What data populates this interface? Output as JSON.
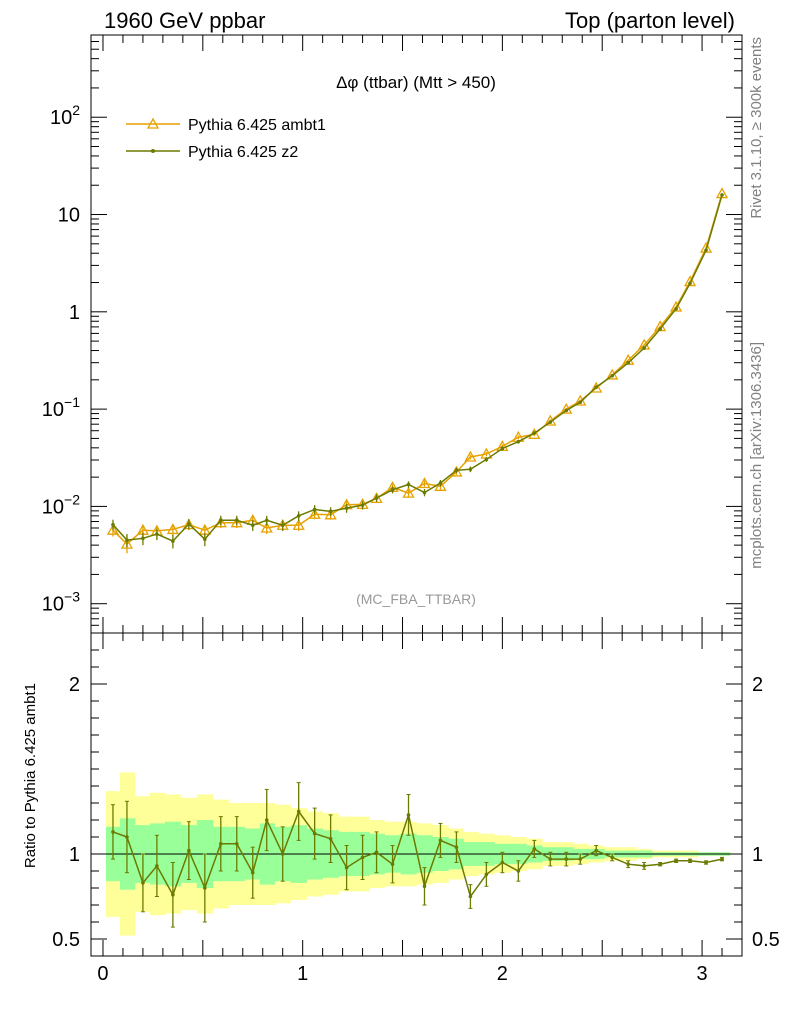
{
  "header": {
    "left": "1960 GeV ppbar",
    "right": "Top (parton level)"
  },
  "side_labels": {
    "rivet": "Rivet 3.1.10, ≥ 300k events",
    "mcplots": "mcplots.cern.ch [arXiv:1306.3436]"
  },
  "chart_data": {
    "type": "line",
    "title": "Δφ (ttbar) (Mtt > 450)",
    "analysis_label": "(MC_FBA_TTBAR)",
    "main_panel": {
      "yscale": "log",
      "ylim": [
        0.0005,
        700
      ],
      "yticks": [
        {
          "value": 0.001,
          "base": "10",
          "exp": "−3"
        },
        {
          "value": 0.01,
          "base": "10",
          "exp": "−2"
        },
        {
          "value": 0.1,
          "base": "10",
          "exp": "−1"
        },
        {
          "value": 1,
          "base": "1",
          "exp": ""
        },
        {
          "value": 10,
          "base": "10",
          "exp": ""
        },
        {
          "value": 100,
          "base": "10",
          "exp": "2"
        }
      ],
      "legend_position": "top-left"
    },
    "ratio_panel": {
      "ylabel": "Ratio to Pythia 6.425 ambt1",
      "ylim": [
        0.4,
        2.3
      ],
      "yticks": [
        {
          "value": 0.5,
          "label": "0.5"
        },
        {
          "value": 1,
          "label": "1"
        },
        {
          "value": 2,
          "label": "2"
        }
      ]
    },
    "xlim": [
      -0.06,
      3.2
    ],
    "xticks": [
      {
        "value": 0,
        "label": "0"
      },
      {
        "value": 1,
        "label": "1"
      },
      {
        "value": 2,
        "label": "2"
      },
      {
        "value": 3,
        "label": "3"
      }
    ],
    "x": [
      0.05,
      0.12,
      0.2,
      0.27,
      0.35,
      0.43,
      0.51,
      0.59,
      0.67,
      0.75,
      0.82,
      0.9,
      0.98,
      1.06,
      1.14,
      1.22,
      1.3,
      1.37,
      1.45,
      1.53,
      1.61,
      1.69,
      1.77,
      1.84,
      1.92,
      2.0,
      2.08,
      2.16,
      2.24,
      2.32,
      2.39,
      2.47,
      2.55,
      2.63,
      2.71,
      2.79,
      2.87,
      2.94,
      3.02,
      3.1
    ],
    "series": [
      {
        "name": "Pythia 6.425 ambt1",
        "color": "#e6a100",
        "marker": "triangle",
        "values": [
          0.0057,
          0.0041,
          0.0057,
          0.0056,
          0.0058,
          0.0065,
          0.0057,
          0.0068,
          0.0068,
          0.0072,
          0.006,
          0.0064,
          0.0064,
          0.0083,
          0.0082,
          0.0104,
          0.0105,
          0.0121,
          0.0157,
          0.0137,
          0.0172,
          0.0161,
          0.0226,
          0.0322,
          0.0346,
          0.0414,
          0.0514,
          0.0551,
          0.0755,
          0.0999,
          0.1212,
          0.1649,
          0.2245,
          0.3185,
          0.4563,
          0.7047,
          1.1202,
          2.0454,
          4.5187,
          16.4138
        ],
        "errors": [
          0.0008,
          0.0008,
          0.0008,
          0.0008,
          0.0008,
          0.0008,
          0.0008,
          0.0008,
          0.0008,
          0.0008,
          0.0008,
          0.0008,
          0.0008,
          0.0009,
          0.0009,
          0.001,
          0.001,
          0.0011,
          0.0012,
          0.0012,
          0.0013,
          0.0013,
          0.0015,
          0.0018,
          0.0018,
          0.002,
          0.0023,
          0.0024,
          0.0027,
          0.0032,
          0.0035,
          0.004,
          0.0047,
          0.0056,
          0.0067,
          0.0084,
          0.0106,
          0.0143,
          0.0213,
          0.0405
        ]
      },
      {
        "name": "Pythia 6.425 z2",
        "color": "#6b7a00",
        "marker": "dot",
        "values": [
          0.0065,
          0.0045,
          0.0047,
          0.0052,
          0.0044,
          0.0066,
          0.0046,
          0.0072,
          0.0072,
          0.0064,
          0.0072,
          0.0064,
          0.008,
          0.0093,
          0.0089,
          0.0096,
          0.0103,
          0.0122,
          0.0148,
          0.0168,
          0.0139,
          0.0174,
          0.0235,
          0.0241,
          0.0304,
          0.0394,
          0.0463,
          0.0567,
          0.0734,
          0.0969,
          0.1176,
          0.1683,
          0.2201,
          0.2994,
          0.4244,
          0.6648,
          1.0754,
          1.9636,
          4.2929,
          15.9214
        ],
        "errors": [
          0.0008,
          0.0007,
          0.0007,
          0.0007,
          0.0007,
          0.0008,
          0.0007,
          0.0008,
          0.0008,
          0.0008,
          0.0008,
          0.0008,
          0.0009,
          0.001,
          0.0009,
          0.001,
          0.001,
          0.0011,
          0.0012,
          0.0013,
          0.0012,
          0.0013,
          0.0015,
          0.0016,
          0.0017,
          0.002,
          0.0021,
          0.0024,
          0.0027,
          0.0031,
          0.0034,
          0.0041,
          0.0047,
          0.0055,
          0.0065,
          0.0081,
          0.0104,
          0.014,
          0.0207,
          0.04
        ]
      }
    ],
    "ratio": {
      "values": [
        1.13,
        1.1,
        0.83,
        0.93,
        0.76,
        1.02,
        0.8,
        1.06,
        1.06,
        0.89,
        1.2,
        1.0,
        1.25,
        1.12,
        1.09,
        0.92,
        0.98,
        1.01,
        0.94,
        1.23,
        0.81,
        1.08,
        1.04,
        0.75,
        0.88,
        0.95,
        0.9,
        1.03,
        0.97,
        0.97,
        0.97,
        1.02,
        0.98,
        0.94,
        0.93,
        0.94,
        0.96,
        0.96,
        0.95,
        0.97
      ],
      "errors": [
        0.16,
        0.21,
        0.17,
        0.18,
        0.19,
        0.17,
        0.2,
        0.16,
        0.16,
        0.15,
        0.18,
        0.16,
        0.17,
        0.15,
        0.14,
        0.13,
        0.13,
        0.12,
        0.11,
        0.12,
        0.11,
        0.1,
        0.09,
        0.07,
        0.07,
        0.06,
        0.06,
        0.05,
        0.04,
        0.04,
        0.03,
        0.03,
        0.02,
        0.02,
        0.02,
        0.01,
        0.01,
        0.01,
        0.01,
        0.01
      ],
      "band_green": [
        0.16,
        0.21,
        0.17,
        0.18,
        0.19,
        0.17,
        0.2,
        0.16,
        0.16,
        0.15,
        0.18,
        0.16,
        0.17,
        0.15,
        0.14,
        0.13,
        0.13,
        0.12,
        0.11,
        0.12,
        0.11,
        0.1,
        0.09,
        0.07,
        0.07,
        0.06,
        0.06,
        0.05,
        0.04,
        0.04,
        0.03,
        0.03,
        0.02,
        0.02,
        0.02,
        0.01,
        0.01,
        0.01,
        0.01,
        0.01
      ],
      "band_yellow": [
        0.37,
        0.48,
        0.34,
        0.36,
        0.35,
        0.33,
        0.35,
        0.32,
        0.3,
        0.3,
        0.3,
        0.29,
        0.27,
        0.25,
        0.24,
        0.22,
        0.22,
        0.2,
        0.19,
        0.19,
        0.18,
        0.17,
        0.15,
        0.13,
        0.12,
        0.11,
        0.1,
        0.09,
        0.07,
        0.07,
        0.06,
        0.05,
        0.04,
        0.04,
        0.03,
        0.02,
        0.02,
        0.02,
        0.01,
        0.01
      ],
      "green_color": "#99ff99",
      "yellow_color": "#ffff99"
    }
  }
}
